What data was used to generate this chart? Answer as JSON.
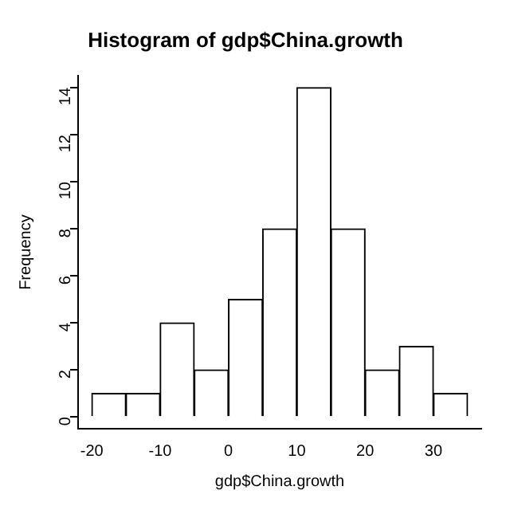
{
  "chart_data": {
    "type": "histogram",
    "title": "Histogram of gdp$China.growth",
    "xlabel": "gdp$China.growth",
    "ylabel": "Frequency",
    "bins": [
      -20,
      -15,
      -10,
      -5,
      0,
      5,
      10,
      15,
      20,
      25,
      30,
      35
    ],
    "values": [
      1,
      1,
      4,
      2,
      5,
      8,
      14,
      8,
      2,
      3,
      1
    ],
    "color": "#ffffff",
    "xlim": [
      -22,
      37
    ],
    "xticks": [
      -20,
      -10,
      0,
      10,
      20,
      30
    ],
    "ylim": [
      -0.5,
      14.5
    ],
    "yticks": [
      0,
      2,
      4,
      6,
      8,
      10,
      12,
      14
    ],
    "grid": false,
    "legend": false
  }
}
